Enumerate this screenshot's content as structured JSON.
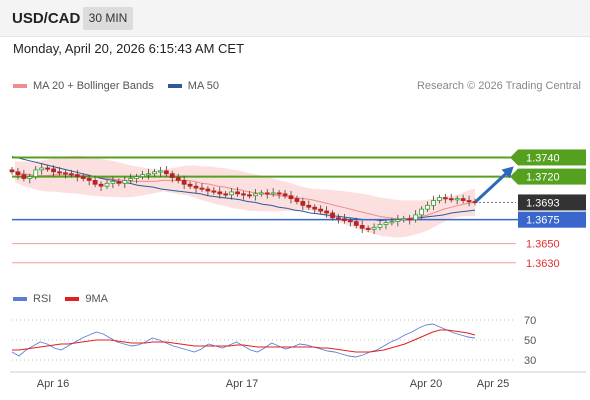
{
  "header": {
    "symbol": "USD/CAD",
    "timeframe": "30 MIN"
  },
  "timestamp": "Monday, April 20, 2026 6:15:43 AM CET",
  "legend": {
    "items": [
      {
        "label": "MA 20 + Bollinger Bands",
        "color": "#f08c8c"
      },
      {
        "label": "MA 50",
        "color": "#2e5a9c"
      }
    ],
    "copyright": "Research © 2026 Trading Central"
  },
  "rsi_legend": {
    "items": [
      {
        "label": "RSI",
        "color": "#5a7ed8"
      },
      {
        "label": "9MA",
        "color": "#e02020"
      }
    ]
  },
  "price_levels": [
    {
      "label": "1.3740",
      "value": 1.374,
      "kind": "resistance",
      "color": "#55a01e"
    },
    {
      "label": "1.3720",
      "value": 1.372,
      "kind": "resistance",
      "color": "#55a01e"
    },
    {
      "label": "1.3693",
      "value": 1.3693,
      "kind": "current",
      "color": "#333333"
    },
    {
      "label": "1.3675",
      "value": 1.3675,
      "kind": "pivot",
      "color": "#3a66cc"
    },
    {
      "label": "1.3650",
      "value": 1.365,
      "kind": "support",
      "color": "#e03030"
    },
    {
      "label": "1.3630",
      "value": 1.363,
      "kind": "support",
      "color": "#e03030"
    }
  ],
  "x_axis": {
    "labels": [
      "Apr 16",
      "Apr 17",
      "Apr 20",
      "Apr 25"
    ]
  },
  "rsi_axis": {
    "labels": [
      "70",
      "50",
      "30"
    ]
  },
  "chart_data": {
    "type": "candlestick",
    "ylim": [
      1.3612,
      1.38
    ],
    "rsi_ylim": [
      20,
      80
    ],
    "closes": [
      1.3725,
      1.3722,
      1.3718,
      1.372,
      1.3727,
      1.3729,
      1.3728,
      1.3725,
      1.3724,
      1.3723,
      1.3722,
      1.372,
      1.3718,
      1.3716,
      1.3712,
      1.371,
      1.3713,
      1.3715,
      1.3713,
      1.3716,
      1.3718,
      1.372,
      1.3722,
      1.3723,
      1.3725,
      1.3726,
      1.3723,
      1.3719,
      1.3716,
      1.3712,
      1.371,
      1.3708,
      1.3707,
      1.3705,
      1.3704,
      1.3702,
      1.3701,
      1.3704,
      1.3702,
      1.3701,
      1.37,
      1.3702,
      1.3703,
      1.3702,
      1.3703,
      1.3702,
      1.37,
      1.3697,
      1.3694,
      1.369,
      1.3688,
      1.3686,
      1.3684,
      1.3682,
      1.3677,
      1.3676,
      1.3674,
      1.3673,
      1.3669,
      1.3666,
      1.3665,
      1.3667,
      1.367,
      1.3672,
      1.3673,
      1.3675,
      1.3676,
      1.3675,
      1.368,
      1.3686,
      1.369,
      1.3695,
      1.3698,
      1.3697,
      1.3696,
      1.3697,
      1.3695,
      1.3694,
      1.3693
    ],
    "ma20": [
      1.3725,
      1.3723,
      1.3722,
      1.3721,
      1.3721,
      1.3722,
      1.3722,
      1.3722,
      1.3722,
      1.3721,
      1.372,
      1.3719,
      1.3718,
      1.3717,
      1.3716,
      1.3715,
      1.3715,
      1.3715,
      1.3715,
      1.3716,
      1.3716,
      1.3716,
      1.3716,
      1.3715,
      1.3713,
      1.3712,
      1.371,
      1.3709,
      1.3707,
      1.3706,
      1.3704,
      1.3703,
      1.3702,
      1.3701,
      1.37,
      1.3699,
      1.3698,
      1.3697,
      1.3696,
      1.3694,
      1.3692,
      1.369,
      1.3688,
      1.3686,
      1.3684,
      1.3682,
      1.368,
      1.3678,
      1.3677,
      1.3676,
      1.3676,
      1.3677,
      1.3678,
      1.368,
      1.3683,
      1.3686,
      1.3688,
      1.369,
      1.3692,
      1.3693
    ],
    "ma50": [
      1.3741,
      1.3739,
      1.3737,
      1.3735,
      1.3733,
      1.3731,
      1.3729,
      1.3727,
      1.3725,
      1.3723,
      1.3721,
      1.3719,
      1.3717,
      1.3716,
      1.3714,
      1.3713,
      1.3711,
      1.371,
      1.3709,
      1.3707,
      1.3706,
      1.3705,
      1.3704,
      1.3703,
      1.3702,
      1.37,
      1.3699,
      1.3698,
      1.3697,
      1.3696,
      1.3694,
      1.3693,
      1.3691,
      1.369,
      1.3688,
      1.3687,
      1.3685,
      1.3684,
      1.3682,
      1.3681,
      1.368,
      1.3679,
      1.3678,
      1.3677,
      1.3676,
      1.3675,
      1.3675,
      1.3674,
      1.3675,
      1.3675,
      1.3675,
      1.3676,
      1.3677,
      1.3678,
      1.3679,
      1.368,
      1.3682,
      1.3683,
      1.3684,
      1.3685
    ],
    "rsi": [
      38,
      34,
      40,
      44,
      48,
      46,
      42,
      40,
      44,
      48,
      52,
      55,
      58,
      56,
      52,
      48,
      46,
      44,
      45,
      48,
      52,
      50,
      47,
      44,
      42,
      40,
      38,
      41,
      46,
      44,
      42,
      45,
      48,
      44,
      40,
      38,
      42,
      47,
      44,
      41,
      43,
      46,
      45,
      43,
      41,
      39,
      38,
      36,
      34,
      33,
      35,
      38,
      40,
      44,
      48,
      51,
      55,
      58,
      62,
      65,
      66,
      63,
      60,
      57,
      55,
      53,
      52
    ],
    "rsi_ma": [
      40,
      40,
      41,
      42,
      43,
      44,
      45,
      46,
      46,
      47,
      48,
      49,
      50,
      50,
      50,
      49,
      48,
      47,
      47,
      47,
      48,
      48,
      48,
      47,
      46,
      45,
      44,
      44,
      44,
      44,
      44,
      44,
      45,
      45,
      44,
      43,
      43,
      43,
      43,
      43,
      43,
      43,
      43,
      43,
      42,
      42,
      41,
      40,
      39,
      38,
      38,
      38,
      39,
      40,
      42,
      44,
      46,
      49,
      52,
      55,
      58,
      60,
      60,
      59,
      58,
      57,
      55
    ]
  }
}
